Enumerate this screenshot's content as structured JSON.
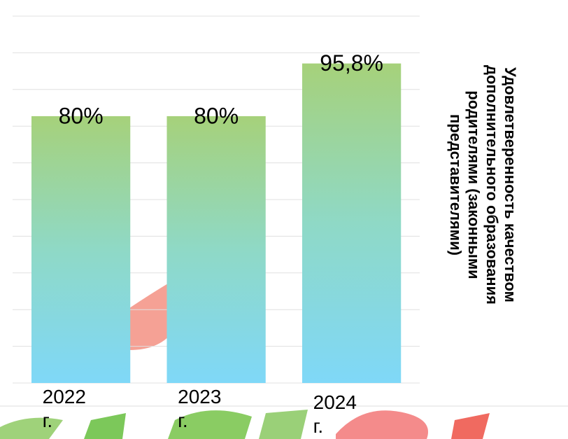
{
  "chart_data": {
    "type": "bar",
    "title": "Удовлетверенность качеством дополнительного образования родителями (законными представителями)",
    "categories": [
      "2022 г.",
      "2023 г.",
      "2024 г."
    ],
    "values": [
      80,
      80,
      95.8
    ],
    "value_labels": [
      "80%",
      "80%",
      "95,8%"
    ],
    "ylim": [
      0,
      110
    ],
    "yticks": [
      0,
      11,
      22,
      33,
      44,
      55,
      66,
      77,
      88,
      99,
      110
    ],
    "grid": true
  }
}
